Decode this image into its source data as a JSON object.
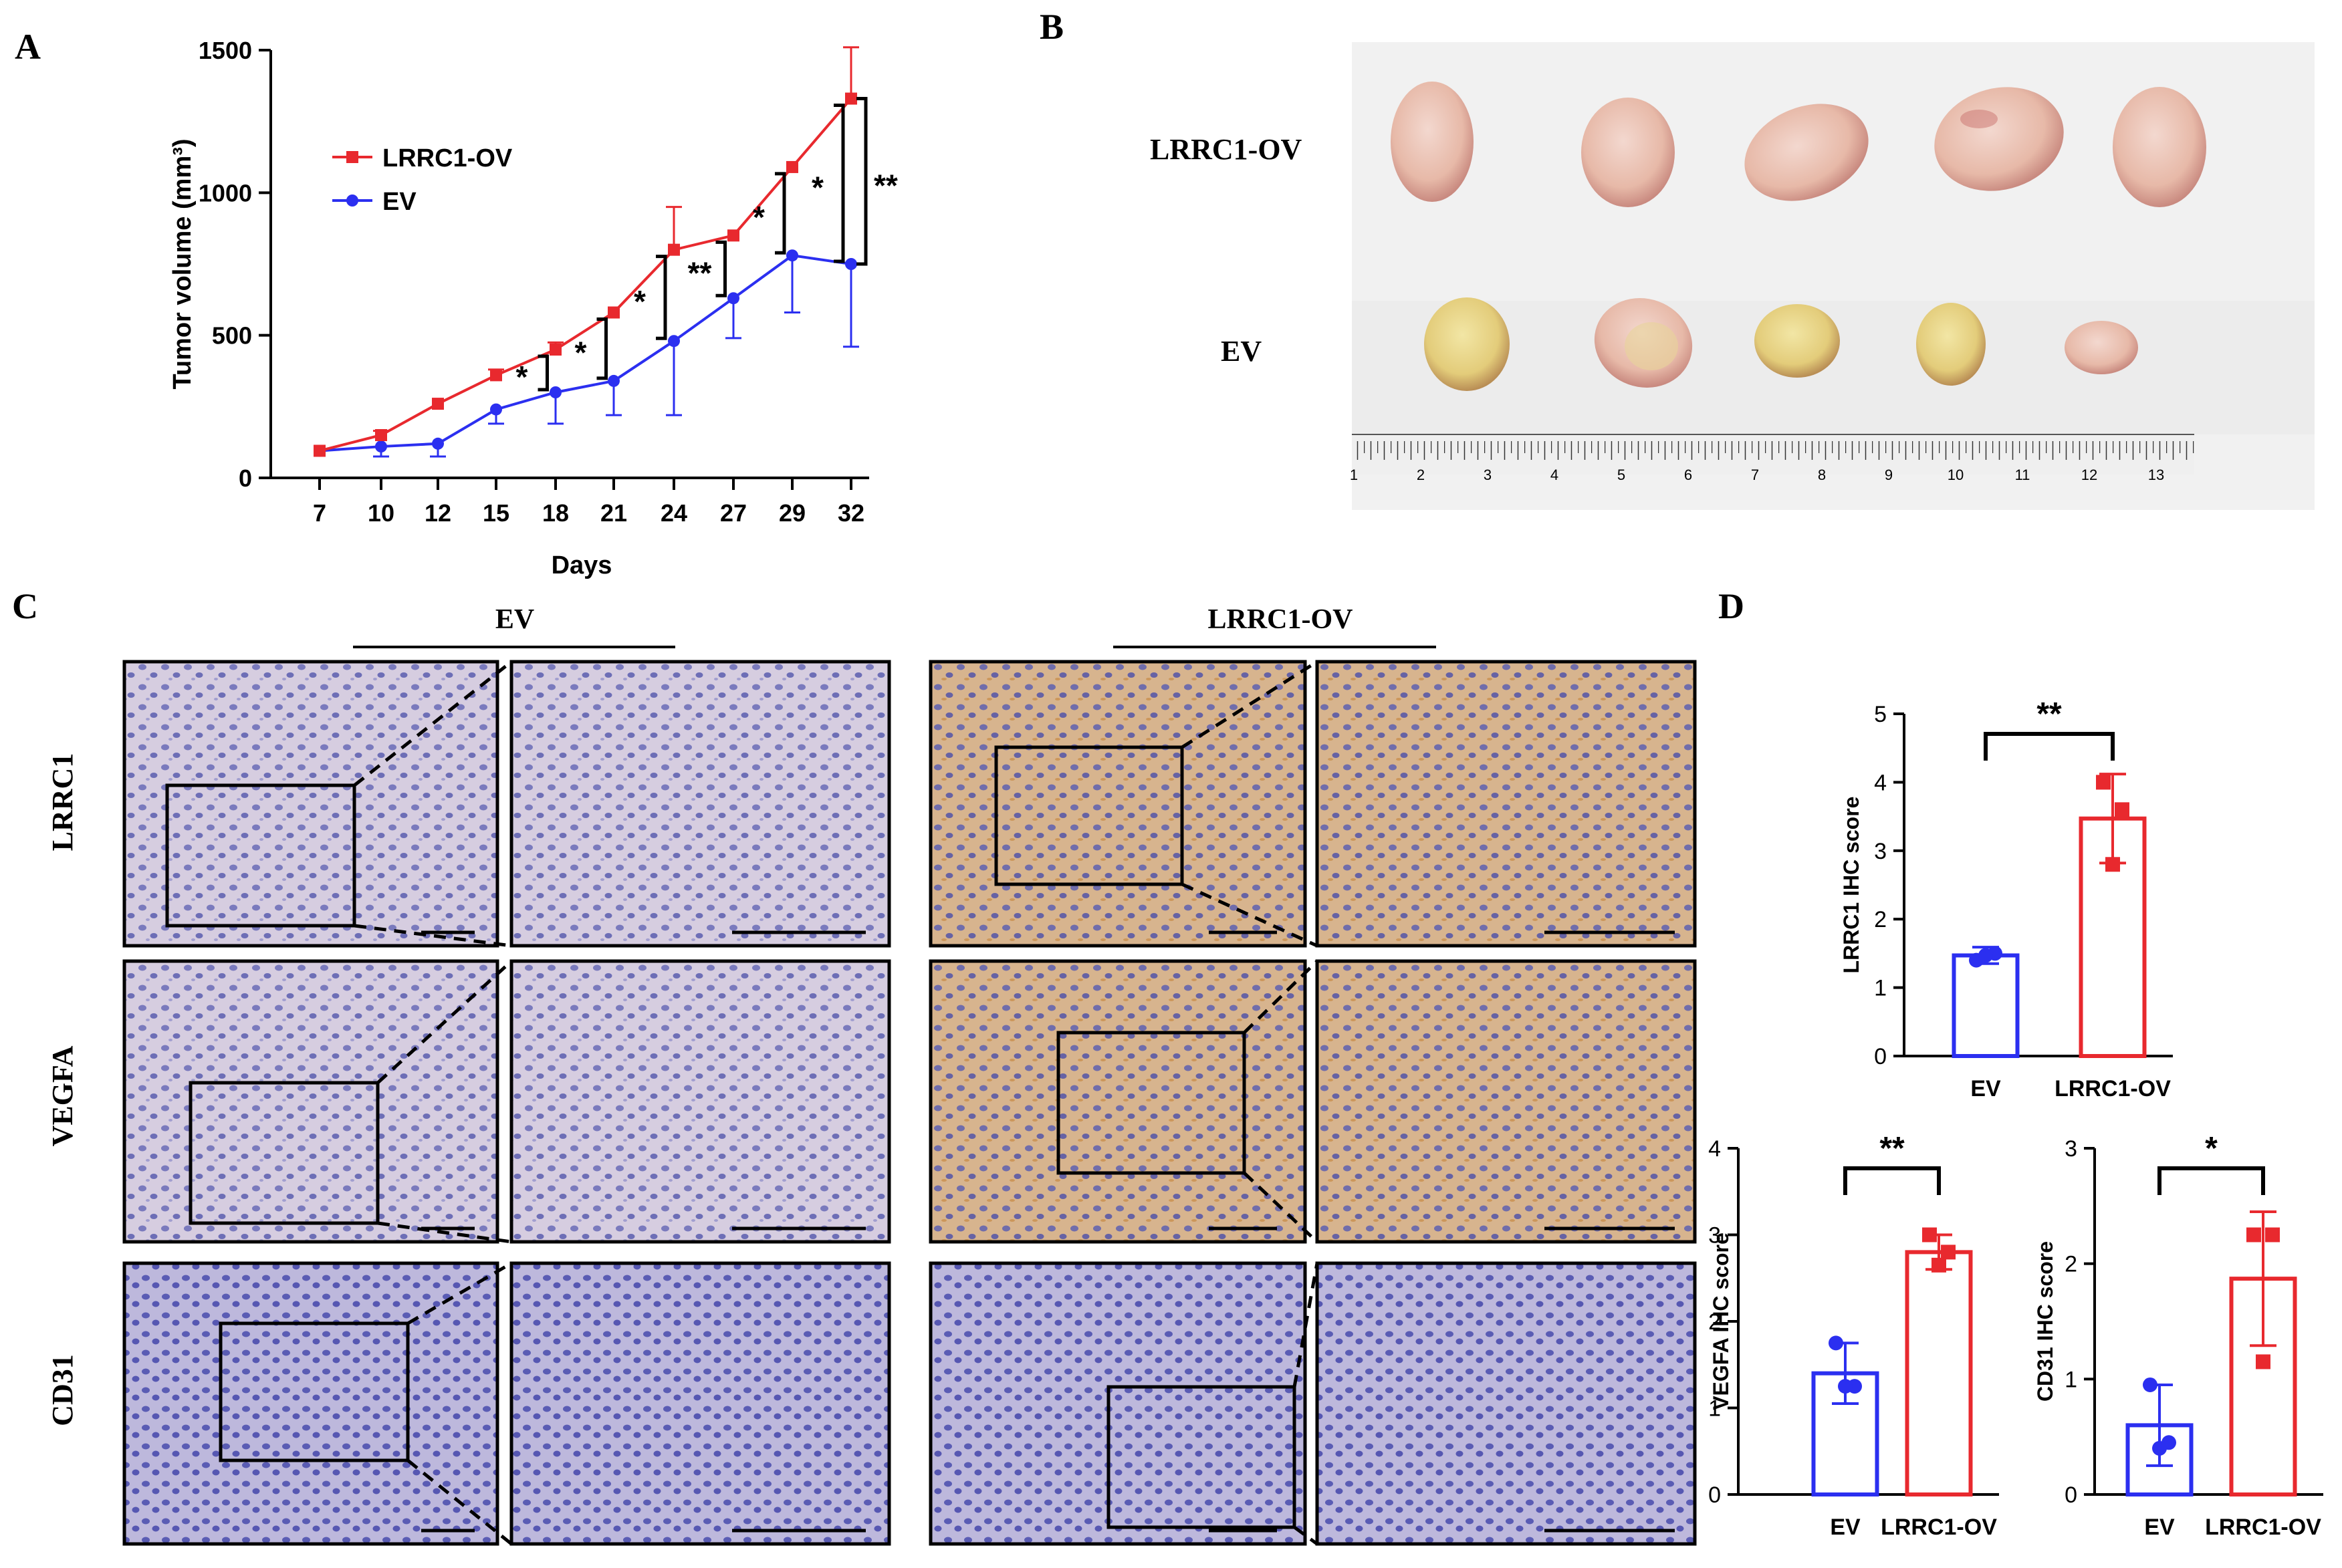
{
  "panels": {
    "A": "A",
    "B": "B",
    "C": "C",
    "D": "D"
  },
  "colors": {
    "ov": "#e8292e",
    "ev": "#2b2ff0",
    "ihc_bg": "#c9c2dc",
    "brown": "#c8955a"
  },
  "chart_data": [
    {
      "type": "line",
      "panel": "A",
      "xlabel": "Days",
      "ylabel": "Tumor volume (mm³)",
      "ylim": [
        0,
        1500
      ],
      "yticks": [
        "0",
        "500",
        "1000",
        "1500"
      ],
      "categories": [
        "7",
        "10",
        "12",
        "15",
        "18",
        "21",
        "24",
        "27",
        "29",
        "32"
      ],
      "legend": "top-left",
      "series": [
        {
          "name": "LRRC1-OV",
          "color": "#e8292e",
          "marker": "square",
          "values": [
            95,
            150,
            260,
            360,
            450,
            580,
            800,
            850,
            1090,
            1330
          ],
          "err": [
            0,
            15,
            0,
            20,
            25,
            0,
            150,
            0,
            0,
            180
          ]
        },
        {
          "name": "EV",
          "color": "#2b2ff0",
          "marker": "circle",
          "values": [
            95,
            110,
            120,
            240,
            300,
            340,
            480,
            630,
            780,
            750
          ],
          "err": [
            0,
            35,
            45,
            50,
            110,
            120,
            260,
            140,
            200,
            290
          ]
        }
      ],
      "significance": [
        {
          "between": [
            "15",
            "18"
          ],
          "label": "*"
        },
        {
          "between": [
            "18",
            "21"
          ],
          "label": "*"
        },
        {
          "between": [
            "21",
            "24"
          ],
          "label": "*"
        },
        {
          "between": [
            "24",
            "27"
          ],
          "label": "**"
        },
        {
          "between": [
            "27",
            "29"
          ],
          "label": "*"
        },
        {
          "between": [
            "29",
            "32"
          ],
          "label": "*"
        },
        {
          "at": "32",
          "label": "**"
        }
      ]
    },
    {
      "type": "bar",
      "panel": "D",
      "ylabel": "LRRC1 IHC score",
      "ylim": [
        0,
        5
      ],
      "yticks": [
        "0",
        "1",
        "2",
        "3",
        "4",
        "5"
      ],
      "categories": [
        "EV",
        "LRRC1-OV"
      ],
      "values": [
        1.47,
        3.47
      ],
      "err": [
        0.12,
        0.65
      ],
      "points": [
        [
          1.4,
          1.5,
          1.47
        ],
        [
          4.0,
          3.6,
          2.8
        ]
      ],
      "sig": "**"
    },
    {
      "type": "bar",
      "panel": "D",
      "ylabel": "VEGFA IHC score",
      "ylim": [
        0,
        4
      ],
      "yticks": [
        "0",
        "1",
        "2",
        "3",
        "4"
      ],
      "categories": [
        "EV",
        "LRRC1-OV"
      ],
      "values": [
        1.4,
        2.8
      ],
      "err": [
        0.35,
        0.2
      ],
      "points": [
        [
          1.75,
          1.25,
          1.25
        ],
        [
          3.0,
          2.8,
          2.65
        ]
      ],
      "sig": "**"
    },
    {
      "type": "bar",
      "panel": "D",
      "ylabel": "CD31 IHC score",
      "ylim": [
        0,
        3
      ],
      "yticks": [
        "0",
        "1",
        "2",
        "3"
      ],
      "categories": [
        "EV",
        "LRRC1-OV"
      ],
      "values": [
        0.6,
        1.87
      ],
      "err": [
        0.35,
        0.58
      ],
      "points": [
        [
          0.95,
          0.45,
          0.4
        ],
        [
          2.25,
          2.25,
          1.15
        ]
      ],
      "sig": "*"
    }
  ],
  "photo_B": {
    "rows": [
      "LRRC1-OV",
      "EV"
    ],
    "ruler_labels": [
      "1",
      "2",
      "3",
      "4",
      "5",
      "6",
      "7",
      "8",
      "9",
      "10",
      "11",
      "12",
      "13"
    ]
  },
  "panel_C": {
    "groups": [
      "EV",
      "LRRC1-OV"
    ],
    "rows": [
      "LRRC1",
      "VEGFA",
      "CD31"
    ]
  }
}
